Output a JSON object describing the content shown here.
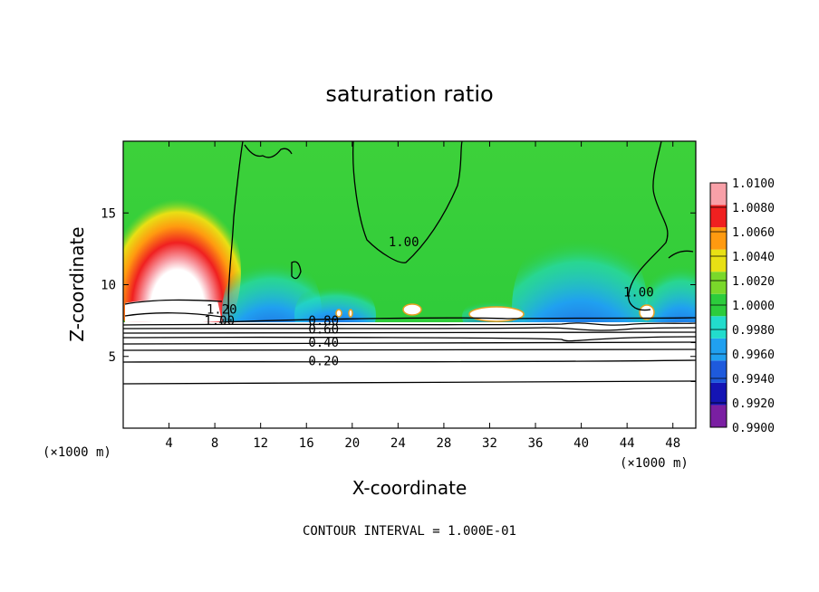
{
  "chart_data": {
    "type": "heatmap",
    "title": "saturation ratio",
    "xlabel": "X-coordinate",
    "ylabel": "Z-coordinate",
    "x_unit_label": "(×1000 m)",
    "x_unit_label_right": "(×1000 m)",
    "xlim": [
      0,
      50
    ],
    "ylim": [
      0,
      20
    ],
    "x_ticks": [
      4,
      8,
      12,
      16,
      20,
      24,
      28,
      32,
      36,
      40,
      44,
      48
    ],
    "x_tick_labels": [
      "4",
      "8",
      "12",
      "16",
      "20",
      "24",
      "28",
      "32",
      "36",
      "40",
      "44",
      "48"
    ],
    "y_ticks": [
      5,
      10,
      15
    ],
    "y_tick_labels": [
      "5",
      "10",
      "15"
    ],
    "colorbar": {
      "levels": [
        0.99,
        0.992,
        0.994,
        0.996,
        0.998,
        1.0,
        1.002,
        1.004,
        1.006,
        1.008,
        1.01
      ],
      "labels": [
        "0.9900",
        "0.9920",
        "0.9940",
        "0.9960",
        "0.9980",
        "1.0000",
        "1.0020",
        "1.0040",
        "1.0060",
        "1.0080",
        "1.0100"
      ],
      "colors": [
        "#7a1fa2",
        "#1414b4",
        "#1e5adc",
        "#20a0f0",
        "#22dccc",
        "#2ccc3c",
        "#7ad82a",
        "#e8e014",
        "#ff9a10",
        "#f02020",
        "#f8a0a8"
      ]
    },
    "contour_labels": [
      {
        "text": "1.20",
        "x": 8.6,
        "z": 8.3
      },
      {
        "text": "1.00",
        "x": 8.4,
        "z": 7.5
      },
      {
        "text": "0.80",
        "x": 17.5,
        "z": 7.5
      },
      {
        "text": "0.60",
        "x": 17.5,
        "z": 6.9
      },
      {
        "text": "0.40",
        "x": 17.5,
        "z": 6.0
      },
      {
        "text": "0.20",
        "x": 17.5,
        "z": 4.7
      },
      {
        "text": "1.00",
        "x": 24.5,
        "z": 13.0
      },
      {
        "text": "1.00",
        "x": 45.0,
        "z": 9.5
      }
    ],
    "contour_interval_text": "CONTOUR INTERVAL = 1.000E-01"
  }
}
